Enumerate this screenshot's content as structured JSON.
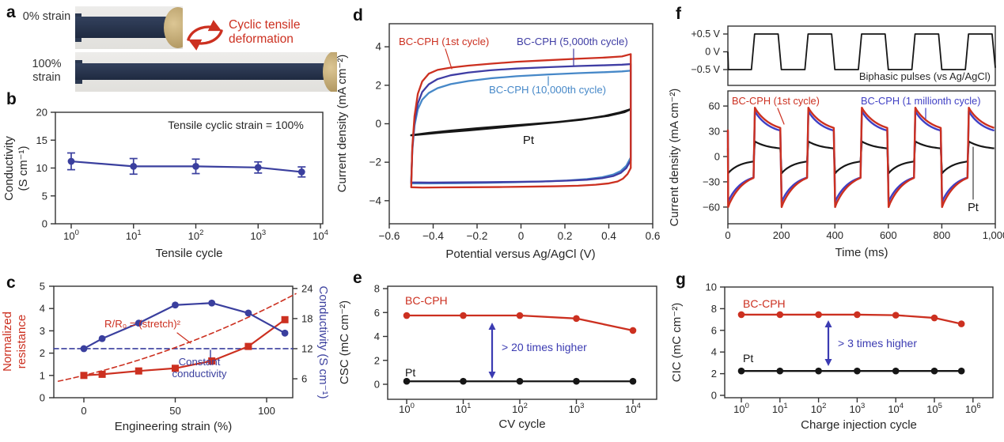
{
  "panels": {
    "a": "a",
    "b": "b",
    "c": "c",
    "d": "d",
    "e": "e",
    "f": "f",
    "g": "g"
  },
  "panel_a": {
    "strain_top": "0% strain",
    "strain_bottom": "100% strain",
    "annotation": "Cyclic tensile deformation"
  },
  "colors": {
    "red": "#cc3020",
    "dark_blue": "#3a3f9e",
    "purple": "#3f3da4",
    "light_blue": "#4688c8",
    "annot_blue": "#3b3bb2",
    "f_blue": "#3f3fc4",
    "black": "#161616",
    "axis": "#333333",
    "strip_navy": "#2b3850",
    "clamp_tan": "#c3a36b"
  },
  "chart_data": [
    {
      "id": "b",
      "type": "line",
      "xlabel": "Tensile cycle",
      "ylabel_lines": [
        "Conductivity",
        "(S cm⁻¹)"
      ],
      "annotation": "Tensile cyclic strain = 100%",
      "xscale": "log",
      "xtick_exps": [
        0,
        1,
        2,
        3,
        4
      ],
      "ylim": [
        0,
        20
      ],
      "ytick_values": [
        0,
        5,
        10,
        15,
        20
      ],
      "ytick_labels": [
        "0",
        "5",
        "10",
        "15",
        "20"
      ],
      "series": [
        {
          "name": "BC-CPH",
          "color": "#3a3f9e",
          "marker": "circle",
          "x": [
            1,
            10,
            100,
            1000,
            5000
          ],
          "y": [
            11.2,
            10.3,
            10.3,
            10.1,
            9.3
          ],
          "yerr": [
            1.5,
            1.4,
            1.3,
            1.0,
            0.9
          ]
        }
      ]
    },
    {
      "id": "c",
      "type": "line-dual-axis",
      "xlabel": "Engineering strain (%)",
      "ylabel_left_lines": [
        "Normalized",
        "resistance"
      ],
      "ylabel_right": "Conductivity (S cm⁻¹)",
      "xtick_values": [
        0,
        50,
        100
      ],
      "xtick_labels": [
        "0",
        "50",
        "100"
      ],
      "ytick_left_values": [
        0,
        1,
        2,
        3,
        4,
        5
      ],
      "ytick_left_labels": [
        "0",
        "1",
        "2",
        "3",
        "4",
        "5"
      ],
      "ytick_right_values": [
        6,
        12,
        18,
        24
      ],
      "ytick_right_labels": [
        "6",
        "12",
        "18",
        "24"
      ],
      "reference_line_label": "R/R₀ = (stretch)²",
      "constant_label_lines": [
        "Constant",
        "conductivity"
      ],
      "constant_conductivity_value": 12,
      "series": [
        {
          "name": "Normalized resistance",
          "axis": "left",
          "color": "#cc3020",
          "marker": "square",
          "x": [
            0,
            10,
            30,
            50,
            70,
            90,
            110
          ],
          "y": [
            1.0,
            1.05,
            1.2,
            1.32,
            1.65,
            2.3,
            3.5
          ]
        },
        {
          "name": "Conductivity",
          "axis": "right",
          "color": "#3a3f9e",
          "marker": "circle",
          "x": [
            0,
            10,
            30,
            50,
            70,
            90,
            110
          ],
          "y": [
            12,
            14,
            17.1,
            20.7,
            21.1,
            19.1,
            15.1
          ]
        }
      ]
    },
    {
      "id": "d",
      "type": "cv",
      "xlabel": "Potential versus Ag/AgCl (V)",
      "ylabel": "Current density (mA cm⁻²)",
      "xlim": [
        -0.6,
        0.6
      ],
      "xtick_values": [
        -0.6,
        -0.4,
        -0.2,
        0,
        0.2,
        0.4,
        0.6
      ],
      "xtick_labels": [
        "−0.6",
        "−0.4",
        "−0.2",
        "0",
        "0.2",
        "0.4",
        "0.6"
      ],
      "ytick_values": [
        -4,
        -2,
        0,
        2,
        4
      ],
      "ytick_labels": [
        "−4",
        "−2",
        "0",
        "2",
        "4"
      ],
      "curves": [
        {
          "name": "Pt",
          "color": "#161616",
          "points": [
            [
              -0.5,
              -0.6
            ],
            [
              -0.42,
              -0.48
            ],
            [
              -0.32,
              -0.36
            ],
            [
              -0.2,
              -0.24
            ],
            [
              -0.08,
              -0.13
            ],
            [
              0.04,
              -0.03
            ],
            [
              0.16,
              0.08
            ],
            [
              0.28,
              0.22
            ],
            [
              0.38,
              0.4
            ],
            [
              0.45,
              0.58
            ],
            [
              0.49,
              0.72
            ],
            [
              0.5,
              0.76
            ],
            [
              0.47,
              0.6
            ],
            [
              0.4,
              0.42
            ],
            [
              0.3,
              0.26
            ],
            [
              0.18,
              0.1
            ],
            [
              0.04,
              -0.05
            ],
            [
              -0.1,
              -0.2
            ],
            [
              -0.24,
              -0.34
            ],
            [
              -0.36,
              -0.45
            ],
            [
              -0.45,
              -0.55
            ],
            [
              -0.5,
              -0.6
            ]
          ]
        },
        {
          "name": "BC-CPH (10,000th cycle)",
          "color": "#4688c8",
          "points": [
            [
              -0.5,
              -3.1
            ],
            [
              -0.495,
              -1.4
            ],
            [
              -0.485,
              -0.1
            ],
            [
              -0.47,
              0.75
            ],
            [
              -0.45,
              1.25
            ],
            [
              -0.42,
              1.6
            ],
            [
              -0.38,
              1.85
            ],
            [
              -0.32,
              2.06
            ],
            [
              -0.24,
              2.22
            ],
            [
              -0.14,
              2.36
            ],
            [
              -0.02,
              2.47
            ],
            [
              0.12,
              2.56
            ],
            [
              0.26,
              2.63
            ],
            [
              0.38,
              2.68
            ],
            [
              0.46,
              2.72
            ],
            [
              0.5,
              2.76
            ],
            [
              0.5,
              -1.75
            ],
            [
              0.48,
              -2.18
            ],
            [
              0.455,
              -2.45
            ],
            [
              0.42,
              -2.64
            ],
            [
              0.37,
              -2.78
            ],
            [
              0.3,
              -2.88
            ],
            [
              0.21,
              -2.95
            ],
            [
              0.1,
              -3.0
            ],
            [
              -0.03,
              -3.04
            ],
            [
              -0.16,
              -3.07
            ],
            [
              -0.3,
              -3.09
            ],
            [
              -0.42,
              -3.1
            ],
            [
              -0.5,
              -3.1
            ]
          ]
        },
        {
          "name": "BC-CPH (5,000th cycle)",
          "color": "#3f3da4",
          "points": [
            [
              -0.5,
              -3.05
            ],
            [
              -0.495,
              -1.3
            ],
            [
              -0.485,
              0.1
            ],
            [
              -0.47,
              1.05
            ],
            [
              -0.45,
              1.65
            ],
            [
              -0.42,
              2.05
            ],
            [
              -0.38,
              2.32
            ],
            [
              -0.32,
              2.52
            ],
            [
              -0.24,
              2.66
            ],
            [
              -0.14,
              2.78
            ],
            [
              -0.02,
              2.87
            ],
            [
              0.12,
              2.94
            ],
            [
              0.26,
              3.0
            ],
            [
              0.38,
              3.04
            ],
            [
              0.46,
              3.07
            ],
            [
              0.5,
              3.1
            ],
            [
              0.5,
              -1.9
            ],
            [
              0.48,
              -2.3
            ],
            [
              0.455,
              -2.55
            ],
            [
              0.42,
              -2.72
            ],
            [
              0.37,
              -2.83
            ],
            [
              0.3,
              -2.91
            ],
            [
              0.21,
              -2.96
            ],
            [
              0.1,
              -3.0
            ],
            [
              -0.03,
              -3.02
            ],
            [
              -0.16,
              -3.04
            ],
            [
              -0.3,
              -3.05
            ],
            [
              -0.42,
              -3.06
            ],
            [
              -0.5,
              -3.05
            ]
          ]
        },
        {
          "name": "BC-CPH (1st cycle)",
          "color": "#cc3020",
          "points": [
            [
              -0.5,
              -3.3
            ],
            [
              -0.495,
              -1.2
            ],
            [
              -0.485,
              0.4
            ],
            [
              -0.47,
              1.55
            ],
            [
              -0.45,
              2.2
            ],
            [
              -0.42,
              2.6
            ],
            [
              -0.38,
              2.8
            ],
            [
              -0.32,
              2.92
            ],
            [
              -0.24,
              3.02
            ],
            [
              -0.14,
              3.12
            ],
            [
              -0.02,
              3.22
            ],
            [
              0.12,
              3.3
            ],
            [
              0.26,
              3.38
            ],
            [
              0.38,
              3.44
            ],
            [
              0.46,
              3.5
            ],
            [
              0.5,
              3.62
            ],
            [
              0.5,
              -2.3
            ],
            [
              0.485,
              -2.62
            ],
            [
              0.465,
              -2.85
            ],
            [
              0.44,
              -3.0
            ],
            [
              0.4,
              -3.1
            ],
            [
              0.34,
              -3.17
            ],
            [
              0.26,
              -3.22
            ],
            [
              0.16,
              -3.25
            ],
            [
              0.04,
              -3.27
            ],
            [
              -0.1,
              -3.29
            ],
            [
              -0.24,
              -3.3
            ],
            [
              -0.36,
              -3.31
            ],
            [
              -0.45,
              -3.32
            ],
            [
              -0.5,
              -3.3
            ]
          ]
        }
      ]
    },
    {
      "id": "e",
      "type": "line",
      "xlabel": "CV cycle",
      "ylabel": "CSC (mC cm⁻²)",
      "annotation": "> 20 times higher",
      "xscale": "log",
      "xtick_exps": [
        0,
        1,
        2,
        3,
        4
      ],
      "ytick_values": [
        0,
        2,
        4,
        6,
        8
      ],
      "ytick_labels": [
        "0",
        "2",
        "4",
        "6",
        "8"
      ],
      "series": [
        {
          "name": "BC-CPH",
          "color": "#cc3020",
          "x_exp": [
            0,
            1,
            2,
            3,
            4
          ],
          "y": [
            5.75,
            5.75,
            5.75,
            5.5,
            4.5
          ]
        },
        {
          "name": "Pt",
          "color": "#161616",
          "x_exp": [
            0,
            1,
            2,
            3,
            4
          ],
          "y": [
            0.25,
            0.25,
            0.25,
            0.25,
            0.25
          ]
        }
      ]
    },
    {
      "id": "f",
      "type": "pulse",
      "top": {
        "label": "Biphasic pulses (vs Ag/AgCl)",
        "ytick_values": [
          0.5,
          0,
          -0.5
        ],
        "ytick_labels": [
          "+0.5 V",
          "0 V",
          "−0.5 V"
        ],
        "high": 0.5,
        "low": -0.5,
        "period_ms": 200,
        "cycles": 5
      },
      "bottom": {
        "xlabel": "Time (ms)",
        "ylabel": "Current density (mA cm⁻²)",
        "xtick_values": [
          0,
          200,
          400,
          600,
          800,
          1000
        ],
        "xtick_labels": [
          "0",
          "200",
          "400",
          "600",
          "800",
          "1,000"
        ],
        "ytick_values": [
          60,
          30,
          0,
          -30,
          -60
        ],
        "ytick_labels": [
          "60",
          "30",
          "0",
          "−30",
          "−60"
        ],
        "series": [
          {
            "name": "Pt",
            "color": "#161616",
            "start": 10,
            "neg_peak": -20,
            "neg_settle": -4,
            "tau_neg": 45,
            "pos_peak": 18,
            "pos_settle": 8,
            "tau_pos": 55
          },
          {
            "name": "BC-CPH (1 millionth cycle)",
            "color": "#3f3fc4",
            "start": 30,
            "neg_peak": -54,
            "neg_settle": -20,
            "tau_neg": 50,
            "pos_peak": 54,
            "pos_settle": 26,
            "tau_pos": 55
          },
          {
            "name": "BC-CPH (1st cycle)",
            "color": "#cc3020",
            "start": 32,
            "neg_peak": -60,
            "neg_settle": -18,
            "tau_neg": 55,
            "pos_peak": 58,
            "pos_settle": 28,
            "tau_pos": 60
          }
        ]
      }
    },
    {
      "id": "g",
      "type": "line",
      "xlabel": "Charge injection cycle",
      "ylabel": "CIC (mC cm⁻²)",
      "annotation": "> 3 times higher",
      "xscale": "log",
      "xtick_exps": [
        0,
        1,
        2,
        3,
        4,
        5,
        6
      ],
      "ytick_values": [
        0,
        2,
        4,
        6,
        8,
        10
      ],
      "ytick_labels": [
        "0",
        "2",
        "4",
        "6",
        "8",
        "10"
      ],
      "series": [
        {
          "name": "BC-CPH",
          "color": "#cc3020",
          "x_exp": [
            0,
            1,
            2,
            3,
            4,
            5,
            5.7
          ],
          "y": [
            7.45,
            7.45,
            7.45,
            7.45,
            7.4,
            7.15,
            6.6
          ]
        },
        {
          "name": "Pt",
          "color": "#161616",
          "x_exp": [
            0,
            1,
            2,
            3,
            4,
            5,
            5.7
          ],
          "y": [
            2.25,
            2.25,
            2.25,
            2.25,
            2.25,
            2.25,
            2.25
          ]
        }
      ]
    }
  ]
}
